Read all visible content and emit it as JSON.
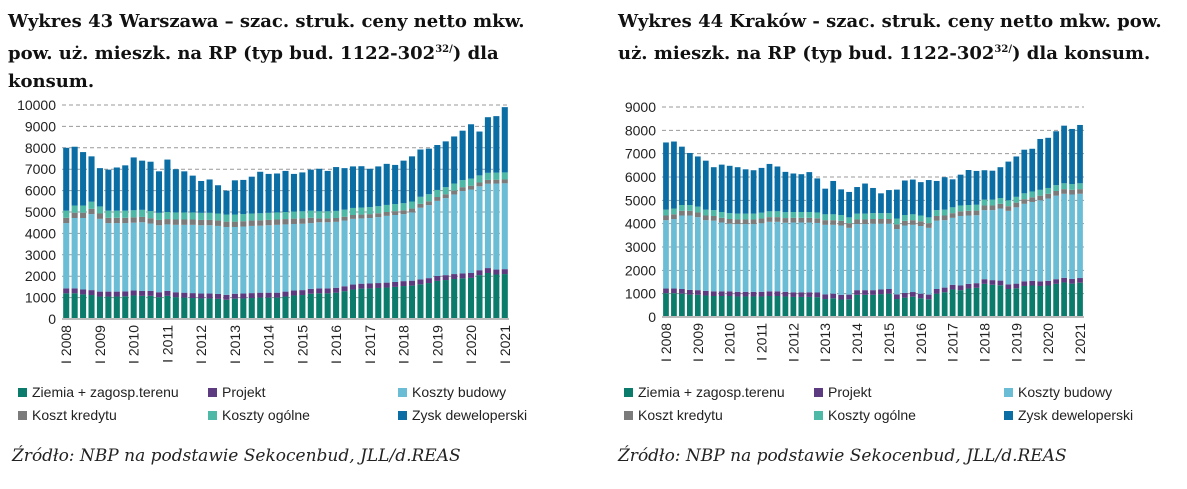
{
  "chart_data": [
    {
      "type": "bar",
      "stacked": true,
      "title_parts": {
        "main": "Wykres 43 Warszawa – szac. struk. ceny netto mkw. pow. uż. mieszk. na RP (typ bud. 1122-302",
        "sup": "32/",
        "end": ") dla konsum."
      },
      "xlabel": "",
      "ylabel": "",
      "ylim": [
        0,
        10000
      ],
      "yticks": [
        "0",
        "1000",
        "2000",
        "3000",
        "4000",
        "5000",
        "6000",
        "7000",
        "8000",
        "9000",
        "10000"
      ],
      "x_tick_labels": [
        "I 2008",
        "I 2009",
        "I 2010",
        "I 2011",
        "I 2012",
        "I 2013",
        "I 2014",
        "I 2015",
        "I 2016",
        "I 2017",
        "I 2018",
        "I 2019",
        "I 2020",
        "I 2021"
      ],
      "x_tick_every": 4,
      "grid": true,
      "legend_position": "bottom",
      "categories_note": "quarterly I 2008 – I 2021",
      "series": [
        {
          "name": "Ziemia + zagosp.terenu",
          "color": "#0b7b6b",
          "values": [
            1200,
            1200,
            1150,
            1120,
            1050,
            1050,
            1050,
            1060,
            1100,
            1080,
            1080,
            1020,
            1080,
            1020,
            1000,
            980,
            960,
            960,
            940,
            900,
            950,
            960,
            980,
            1000,
            1000,
            1000,
            1050,
            1100,
            1120,
            1180,
            1200,
            1200,
            1230,
            1300,
            1380,
            1420,
            1430,
            1450,
            1470,
            1500,
            1540,
            1560,
            1620,
            1680,
            1780,
            1820,
            1870,
            1900,
            1920,
            2050,
            2150,
            2080,
            2100
          ]
        },
        {
          "name": "Projekt",
          "color": "#5c3b80",
          "values": [
            230,
            230,
            230,
            230,
            230,
            230,
            230,
            230,
            230,
            230,
            230,
            230,
            230,
            230,
            230,
            230,
            230,
            230,
            230,
            230,
            230,
            230,
            230,
            230,
            230,
            230,
            230,
            230,
            230,
            230,
            230,
            230,
            230,
            230,
            230,
            230,
            230,
            230,
            230,
            230,
            230,
            230,
            230,
            230,
            230,
            230,
            230,
            230,
            230,
            230,
            230,
            230,
            230
          ]
        },
        {
          "name": "Koszty budowy",
          "color": "#6bbdd6",
          "values": [
            3050,
            3290,
            3340,
            3550,
            3400,
            3200,
            3200,
            3190,
            3170,
            3210,
            3150,
            3130,
            3110,
            3150,
            3170,
            3190,
            3190,
            3190,
            3180,
            3170,
            3120,
            3130,
            3140,
            3130,
            3150,
            3170,
            3140,
            3110,
            3100,
            3070,
            3090,
            3090,
            3080,
            3070,
            3070,
            3050,
            3060,
            3080,
            3120,
            3130,
            3130,
            3190,
            3350,
            3410,
            3510,
            3600,
            3720,
            3850,
            3900,
            3920,
            3940,
            4020,
            4010
          ]
        },
        {
          "name": "Koszt kredytu",
          "color": "#7b7b7b",
          "values": [
            250,
            250,
            250,
            250,
            250,
            250,
            250,
            250,
            250,
            250,
            250,
            250,
            250,
            250,
            250,
            250,
            250,
            250,
            250,
            250,
            250,
            250,
            250,
            250,
            250,
            250,
            250,
            250,
            250,
            250,
            180,
            180,
            180,
            180,
            180,
            180,
            180,
            180,
            180,
            180,
            180,
            180,
            180,
            180,
            180,
            180,
            180,
            180,
            180,
            180,
            180,
            180,
            180
          ]
        },
        {
          "name": "Koszty ogólne",
          "color": "#4db9a6",
          "values": [
            330,
            330,
            330,
            330,
            330,
            330,
            330,
            330,
            330,
            330,
            330,
            330,
            330,
            330,
            330,
            330,
            330,
            330,
            330,
            330,
            330,
            330,
            330,
            330,
            330,
            330,
            330,
            330,
            330,
            330,
            330,
            330,
            330,
            330,
            330,
            330,
            330,
            330,
            330,
            330,
            330,
            330,
            330,
            330,
            330,
            330,
            330,
            330,
            330,
            330,
            330,
            330,
            330
          ]
        },
        {
          "name": "Zysk deweloperski",
          "color": "#0a6ea5",
          "values": [
            2940,
            2750,
            2500,
            2120,
            1790,
            1920,
            2020,
            2120,
            2470,
            2300,
            2310,
            1940,
            2450,
            2020,
            1920,
            1720,
            1490,
            1560,
            1320,
            1120,
            1600,
            1600,
            1720,
            1940,
            1820,
            1820,
            1920,
            1760,
            1820,
            1920,
            1990,
            1890,
            2050,
            1940,
            1940,
            1930,
            1790,
            1860,
            1920,
            1830,
            1990,
            2110,
            2210,
            2130,
            2100,
            2140,
            2200,
            2310,
            2540,
            2050,
            2600,
            2640,
            3050
          ]
        }
      ],
      "source": "Źródło: NBP na podstawie Sekocenbud, JLL/d.REAS"
    },
    {
      "type": "bar",
      "stacked": true,
      "title_parts": {
        "main": "Wykres 44 Kraków - szac. struk. ceny netto mkw. pow. uż. mieszk. na RP (typ bud. 1122-302",
        "sup": "32/",
        "end": ") dla konsum."
      },
      "xlabel": "",
      "ylabel": "",
      "ylim": [
        0,
        9000
      ],
      "yticks": [
        "0",
        "1000",
        "2000",
        "3000",
        "4000",
        "5000",
        "6000",
        "7000",
        "8000",
        "9000"
      ],
      "x_tick_labels": [
        "I 2008",
        "I 2009",
        "I 2010",
        "I 2011",
        "I 2012",
        "I 2013",
        "I 2014",
        "I 2015",
        "I 2016",
        "I 2017",
        "I 2018",
        "I 2019",
        "I 2020",
        "I 2021"
      ],
      "x_tick_every": 4,
      "grid": true,
      "legend_position": "bottom",
      "categories_note": "quarterly I 2008 – I 2021",
      "series": [
        {
          "name": "Ziemia + zagosp.terenu",
          "color": "#0b7b6b",
          "values": [
            1020,
            1020,
            1000,
            960,
            950,
            920,
            900,
            900,
            900,
            880,
            880,
            880,
            880,
            900,
            900,
            880,
            860,
            860,
            860,
            850,
            770,
            800,
            750,
            760,
            950,
            950,
            950,
            980,
            1000,
            770,
            830,
            870,
            800,
            760,
            1000,
            1060,
            1180,
            1150,
            1220,
            1250,
            1420,
            1380,
            1360,
            1200,
            1230,
            1330,
            1350,
            1330,
            1350,
            1420,
            1480,
            1430,
            1470
          ]
        },
        {
          "name": "Projekt",
          "color": "#5c3b80",
          "values": [
            200,
            200,
            200,
            200,
            200,
            200,
            200,
            200,
            200,
            200,
            200,
            200,
            200,
            200,
            200,
            200,
            200,
            200,
            200,
            200,
            200,
            200,
            200,
            200,
            200,
            200,
            200,
            200,
            200,
            200,
            200,
            200,
            200,
            200,
            200,
            200,
            200,
            200,
            200,
            200,
            200,
            200,
            200,
            200,
            200,
            200,
            200,
            200,
            200,
            200,
            200,
            200,
            200
          ]
        },
        {
          "name": "Koszty budowy",
          "color": "#6bbdd6",
          "values": [
            2930,
            2980,
            3150,
            3190,
            3130,
            3030,
            3030,
            2950,
            2900,
            2900,
            2900,
            2900,
            2940,
            2980,
            2980,
            2960,
            2990,
            2990,
            2990,
            2980,
            2980,
            2950,
            2970,
            2860,
            2830,
            2830,
            2850,
            2820,
            2800,
            2800,
            2890,
            2880,
            2900,
            2860,
            2930,
            2890,
            2870,
            2980,
            2930,
            2910,
            2960,
            3000,
            3090,
            3150,
            3270,
            3320,
            3380,
            3470,
            3530,
            3580,
            3600,
            3620,
            3610
          ]
        },
        {
          "name": "Koszt kredytu",
          "color": "#7b7b7b",
          "values": [
            200,
            200,
            200,
            200,
            200,
            200,
            200,
            200,
            200,
            200,
            200,
            200,
            200,
            200,
            200,
            200,
            200,
            200,
            200,
            200,
            200,
            200,
            200,
            200,
            200,
            200,
            200,
            200,
            200,
            200,
            200,
            200,
            200,
            200,
            200,
            200,
            200,
            200,
            200,
            200,
            200,
            200,
            200,
            200,
            200,
            200,
            200,
            200,
            200,
            200,
            200,
            200,
            200
          ]
        },
        {
          "name": "Koszty ogólne",
          "color": "#4db9a6",
          "values": [
            250,
            250,
            250,
            250,
            250,
            250,
            250,
            250,
            250,
            250,
            250,
            250,
            250,
            250,
            250,
            250,
            250,
            250,
            250,
            250,
            250,
            250,
            250,
            250,
            250,
            250,
            250,
            250,
            250,
            250,
            250,
            250,
            250,
            250,
            250,
            250,
            250,
            250,
            250,
            250,
            250,
            250,
            250,
            250,
            250,
            250,
            250,
            250,
            250,
            250,
            250,
            250,
            250
          ]
        },
        {
          "name": "Zysk deweloperski",
          "color": "#0a6ea5",
          "values": [
            2880,
            2870,
            2500,
            2230,
            2150,
            2100,
            1840,
            2030,
            2030,
            1990,
            1900,
            1860,
            1920,
            2030,
            1920,
            1730,
            1650,
            1620,
            1710,
            1460,
            1100,
            1430,
            1100,
            1090,
            1140,
            1290,
            1080,
            850,
            990,
            1240,
            1480,
            1490,
            1430,
            1600,
            1250,
            1390,
            1200,
            1320,
            1500,
            1450,
            1260,
            1240,
            1320,
            1660,
            1730,
            1870,
            1830,
            2180,
            2150,
            2310,
            2470,
            2360,
            2500
          ]
        }
      ],
      "source": "Źródło: NBP na podstawie Sekocenbud, JLL/d.REAS"
    }
  ]
}
